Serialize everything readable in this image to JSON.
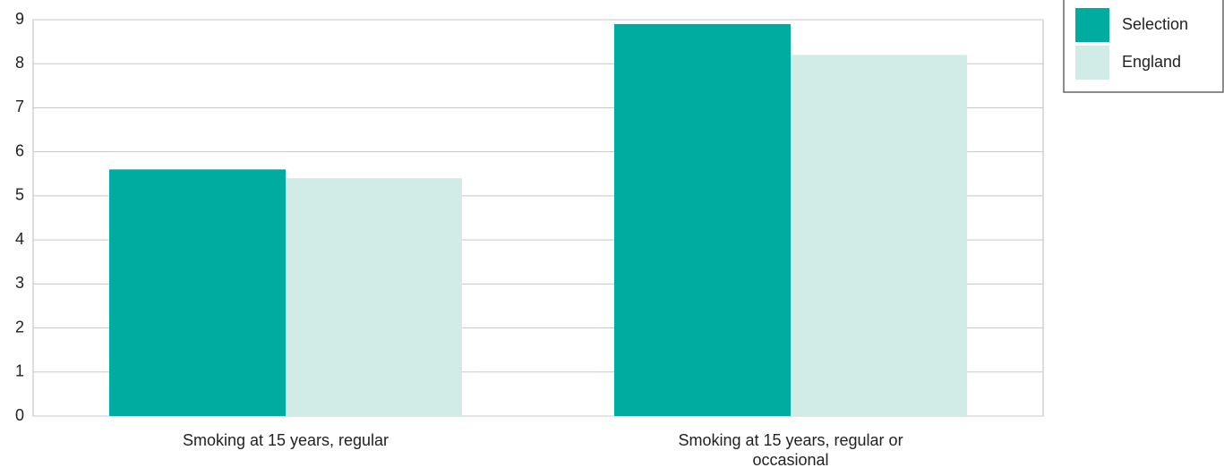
{
  "chart_data": {
    "type": "bar",
    "categories": [
      "Smoking at 15 years, regular",
      "Smoking at 15 years, regular or occasional"
    ],
    "series": [
      {
        "name": "Selection",
        "color": "#00ab9f",
        "values": [
          5.6,
          8.9
        ]
      },
      {
        "name": "England",
        "color": "#d1ebe7",
        "values": [
          5.4,
          8.2
        ]
      }
    ],
    "ylim": [
      0,
      9
    ],
    "yticks": [
      0,
      1,
      2,
      3,
      4,
      5,
      6,
      7,
      8,
      9
    ],
    "grid": true,
    "legend": "top-right"
  }
}
